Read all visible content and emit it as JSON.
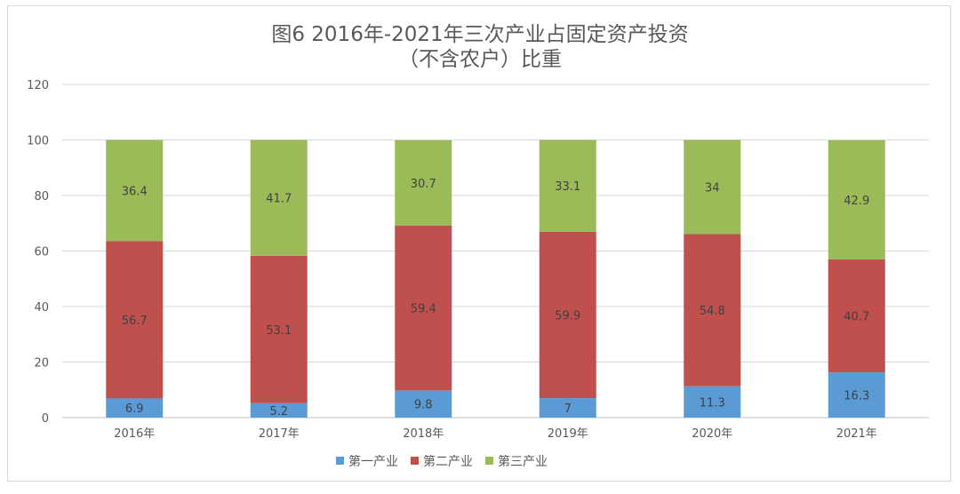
{
  "chart_data": {
    "type": "bar",
    "stacked": true,
    "title": "图6 2016年-2021年三次产业占固定资产投资",
    "subtitle": "（不含农户）比重",
    "xlabel": "",
    "ylabel": "",
    "ylim": [
      0,
      120
    ],
    "yticks": [
      0,
      20,
      40,
      60,
      80,
      100,
      120
    ],
    "grid": true,
    "legend_position": "bottom",
    "categories": [
      "2016年",
      "2017年",
      "2018年",
      "2019年",
      "2020年",
      "2021年"
    ],
    "series": [
      {
        "name": "第一产业",
        "color": "#5b9bd5",
        "values": [
          6.9,
          5.2,
          9.8,
          7,
          11.3,
          16.3
        ]
      },
      {
        "name": "第二产业",
        "color": "#c0504d",
        "values": [
          56.7,
          53.1,
          59.4,
          59.9,
          54.8,
          40.7
        ]
      },
      {
        "name": "第三产业",
        "color": "#9bbb59",
        "values": [
          36.4,
          41.7,
          30.7,
          33.1,
          34,
          42.9
        ]
      }
    ]
  }
}
